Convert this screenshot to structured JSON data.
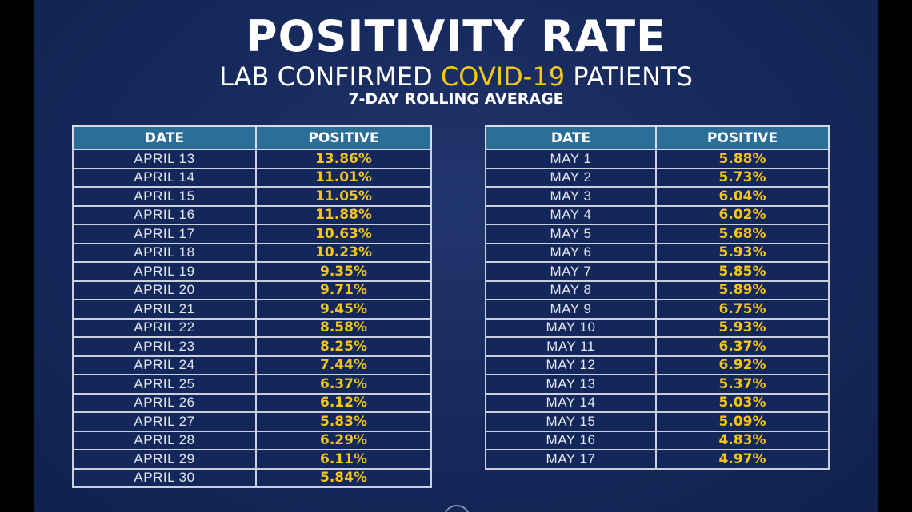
{
  "title": "POSITIVITY RATE",
  "subtitle_prefix": "LAB CONFIRMED",
  "subtitle_highlight": "COVID-19",
  "subtitle_suffix": "PATIENTS",
  "subtitle2": "7-DAY ROLLING AVERAGE",
  "colors": {
    "background": "#172a5d",
    "header": "#2b6f99",
    "value": "#f5c518",
    "text": "#ffffff"
  },
  "left_table": {
    "headers": [
      "DATE",
      "POSITIVE"
    ],
    "rows": [
      [
        "APRIL 13",
        "13.86%"
      ],
      [
        "APRIL 14",
        "11.01%"
      ],
      [
        "APRIL 15",
        "11.05%"
      ],
      [
        "APRIL 16",
        "11.88%"
      ],
      [
        "APRIL 17",
        "10.63%"
      ],
      [
        "APRIL 18",
        "10.23%"
      ],
      [
        "APRIL 19",
        "9.35%"
      ],
      [
        "APRIL 20",
        "9.71%"
      ],
      [
        "APRIL 21",
        "9.45%"
      ],
      [
        "APRIL 22",
        "8.58%"
      ],
      [
        "APRIL 23",
        "8.25%"
      ],
      [
        "APRIL 24",
        "7.44%"
      ],
      [
        "APRIL 25",
        "6.37%"
      ],
      [
        "APRIL 26",
        "6.12%"
      ],
      [
        "APRIL 27",
        "5.83%"
      ],
      [
        "APRIL 28",
        "6.29%"
      ],
      [
        "APRIL 29",
        "6.11%"
      ],
      [
        "APRIL 30",
        "5.84%"
      ]
    ]
  },
  "right_table": {
    "headers": [
      "DATE",
      "POSITIVE"
    ],
    "rows": [
      [
        "MAY 1",
        "5.88%"
      ],
      [
        "MAY 2",
        "5.73%"
      ],
      [
        "MAY 3",
        "6.04%"
      ],
      [
        "MAY 4",
        "6.02%"
      ],
      [
        "MAY 5",
        "5.68%"
      ],
      [
        "MAY 6",
        "5.93%"
      ],
      [
        "MAY 7",
        "5.85%"
      ],
      [
        "MAY 8",
        "5.89%"
      ],
      [
        "MAY 9",
        "6.75%"
      ],
      [
        "MAY 10",
        "5.93%"
      ],
      [
        "MAY 11",
        "6.37%"
      ],
      [
        "MAY 12",
        "6.92%"
      ],
      [
        "MAY 13",
        "5.37%"
      ],
      [
        "MAY 14",
        "5.03%"
      ],
      [
        "MAY 15",
        "5.09%"
      ],
      [
        "MAY 16",
        "4.83%"
      ],
      [
        "MAY 17",
        "4.97%"
      ]
    ]
  }
}
